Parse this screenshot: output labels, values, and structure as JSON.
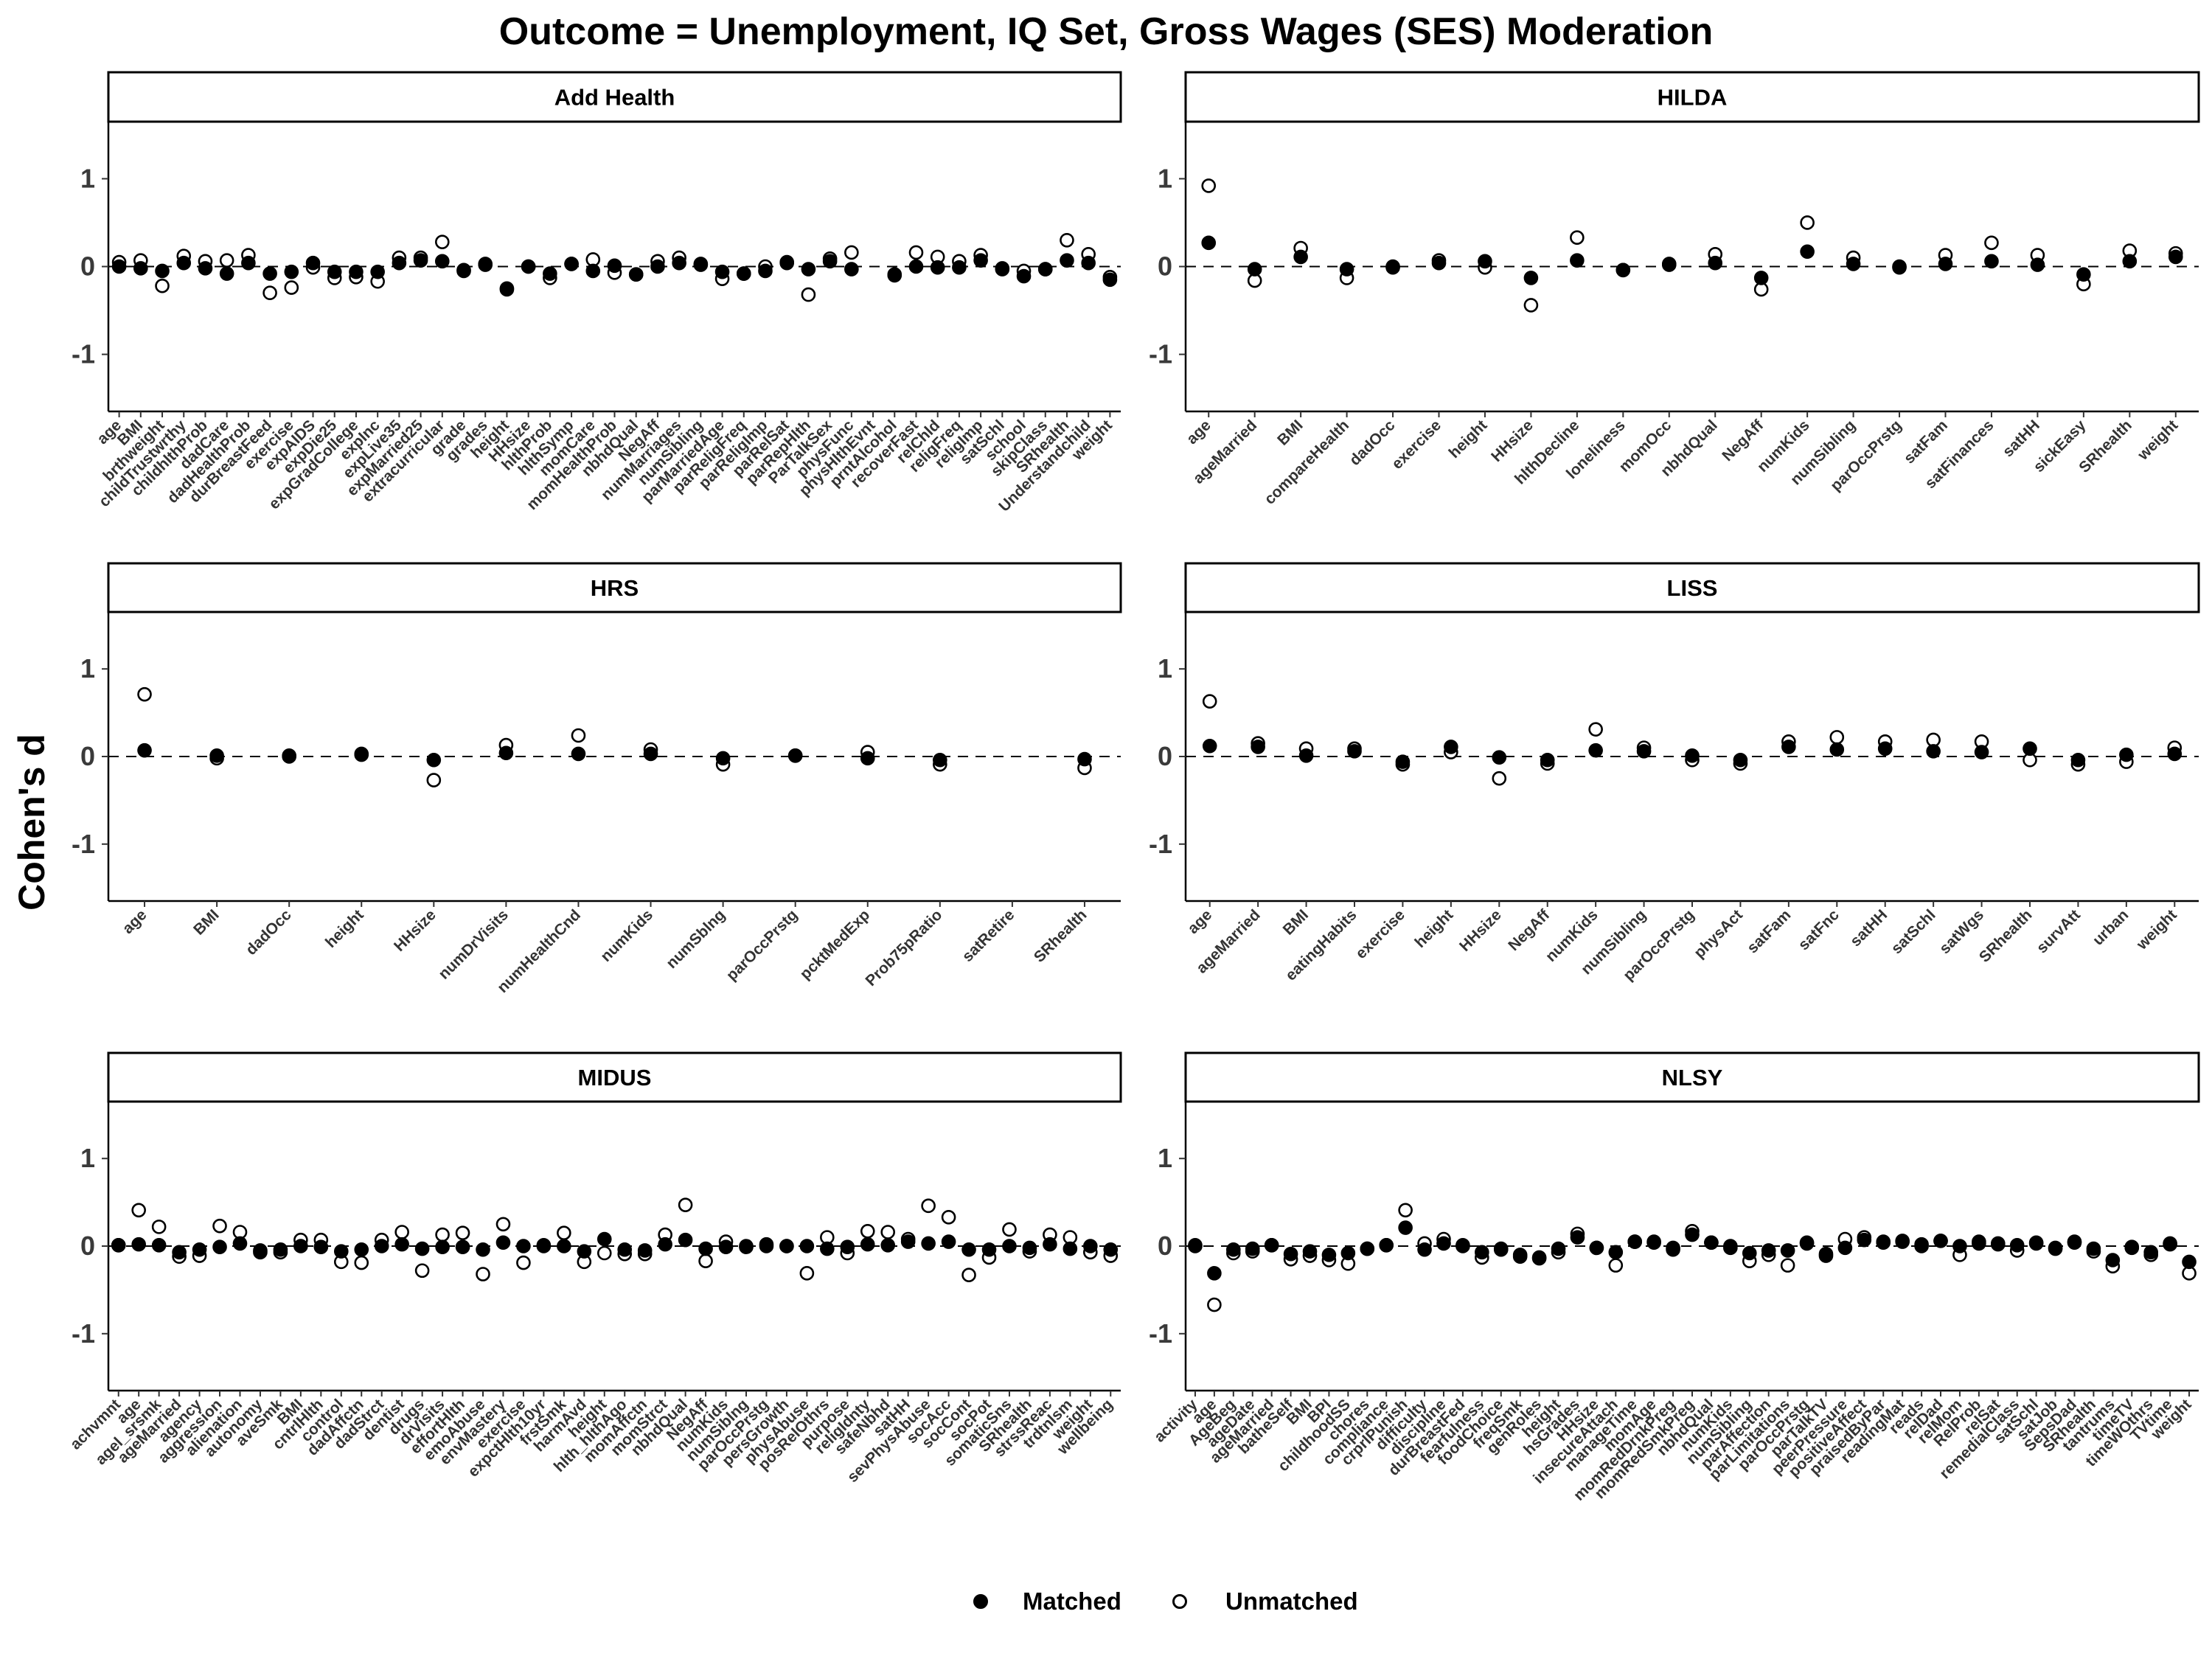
{
  "chart_data": {
    "type": "scatter",
    "title": "Outcome = Unemployment, IQ Set, Gross Wages (SES) Moderation",
    "ylabel": "Cohen's d",
    "ylim": [
      -1.65,
      1.65
    ],
    "yticks": [
      -1,
      0,
      1
    ],
    "reference_line": 0,
    "grid": false,
    "legend": {
      "position": "bottom",
      "entries": [
        {
          "name": "Matched",
          "marker": "filled-circle"
        },
        {
          "name": "Unmatched",
          "marker": "open-circle"
        }
      ]
    },
    "colors": {
      "matched": "#000000",
      "unmatched": "#ffffff",
      "stroke": "#000000"
    },
    "panels": [
      {
        "name": "Add Health",
        "categories": [
          "age",
          "BMI",
          "brthweight",
          "childTrustwrthy",
          "childhlthProb",
          "dadCare",
          "dadHealthProb",
          "durBreastFeed",
          "exercise",
          "expAIDS",
          "expDie25",
          "expGradCollege",
          "expInc",
          "expLive35",
          "expMarried25",
          "extracurricular",
          "grade",
          "grades",
          "height",
          "HHsize",
          "hlthProb",
          "hlthSymp",
          "momCare",
          "momHealthProb",
          "nbhdQual",
          "NegAff",
          "numMarriages",
          "numSibling",
          "parMarriedAge",
          "parReligFreq",
          "parReligImp",
          "parRelSat",
          "parRepHlth",
          "ParTalkSex",
          "physFunc",
          "physHlthEvnt",
          "prntAlcohol",
          "recoverFast",
          "relChld",
          "religFreq",
          "religImp",
          "satSchl",
          "school",
          "skipClass",
          "SRhealth",
          "Understandchild",
          "weight"
        ],
        "matched": [
          0.0,
          -0.02,
          -0.05,
          0.04,
          -0.02,
          -0.08,
          0.04,
          -0.08,
          -0.06,
          0.04,
          -0.06,
          -0.06,
          -0.06,
          0.04,
          0.07,
          0.06,
          -0.04,
          0.03,
          -0.25,
          0.0,
          -0.08,
          0.03,
          -0.05,
          0.01,
          -0.09,
          0.0,
          0.04,
          0.02,
          -0.06,
          -0.08,
          -0.05,
          0.05,
          -0.03,
          0.06,
          -0.03,
          null,
          -0.09,
          0.0,
          -0.01,
          -0.01,
          0.07,
          -0.03,
          -0.11,
          -0.03,
          0.07,
          0.04,
          -0.15
        ],
        "unmatched": [
          0.05,
          0.07,
          -0.22,
          0.12,
          0.06,
          0.07,
          0.13,
          -0.3,
          -0.24,
          -0.01,
          -0.13,
          -0.12,
          -0.17,
          0.1,
          0.1,
          0.28,
          -0.05,
          0.02,
          -0.26,
          0.0,
          -0.13,
          0.03,
          0.08,
          -0.07,
          -0.09,
          0.06,
          0.1,
          0.03,
          -0.14,
          -0.08,
          0.0,
          0.04,
          -0.32,
          0.09,
          0.16,
          null,
          -0.1,
          0.16,
          0.11,
          0.06,
          0.13,
          -0.02,
          -0.05,
          -0.03,
          0.3,
          0.14,
          -0.12
        ]
      },
      {
        "name": "HILDA",
        "categories": [
          "age",
          "ageMarried",
          "BMI",
          "compareHealth",
          "dadOcc",
          "exercise",
          "height",
          "HHsize",
          "hlthDecline",
          "loneliness",
          "momOcc",
          "nbhdQual",
          "NegAff",
          "numKids",
          "numSibling",
          "parOccPrstg",
          "satFam",
          "satFinances",
          "satHH",
          "sickEasy",
          "SRhealth",
          "weight"
        ],
        "matched": [
          0.27,
          -0.03,
          0.11,
          -0.03,
          -0.01,
          0.04,
          0.06,
          -0.13,
          0.07,
          -0.04,
          0.03,
          0.04,
          -0.13,
          0.17,
          0.03,
          0.0,
          0.03,
          0.06,
          0.02,
          -0.09,
          0.06,
          0.11
        ],
        "unmatched": [
          0.92,
          -0.16,
          0.21,
          -0.13,
          0.0,
          0.07,
          -0.01,
          -0.44,
          0.33,
          -0.04,
          0.02,
          0.14,
          -0.26,
          0.5,
          0.1,
          -0.01,
          0.13,
          0.27,
          0.13,
          -0.2,
          0.18,
          0.15
        ]
      },
      {
        "name": "HRS",
        "categories": [
          "age",
          "BMI",
          "dadOcc",
          "height",
          "HHsize",
          "numDrVisits",
          "numHealthCnd",
          "numKids",
          "numSblng",
          "parOccPrstg",
          "pcktMedExp",
          "Prob75pRatio",
          "satRetire",
          "SRhealth"
        ],
        "matched": [
          0.07,
          0.01,
          0.01,
          0.03,
          -0.04,
          0.04,
          0.03,
          0.03,
          -0.02,
          0.01,
          -0.02,
          -0.04,
          null,
          -0.03
        ],
        "unmatched": [
          0.71,
          -0.02,
          0.0,
          0.02,
          -0.27,
          0.13,
          0.24,
          0.08,
          -0.09,
          0.01,
          0.05,
          -0.09,
          null,
          -0.13
        ]
      },
      {
        "name": "LISS",
        "categories": [
          "age",
          "ageMarried",
          "BMI",
          "eatingHabits",
          "exercise",
          "height",
          "HHsize",
          "NegAff",
          "numKids",
          "numSibling",
          "parOccPrstg",
          "physAct",
          "satFam",
          "satFnc",
          "satHH",
          "satSchl",
          "satWgs",
          "SRhealth",
          "survAtt",
          "urban",
          "weight"
        ],
        "matched": [
          0.12,
          0.11,
          0.01,
          0.06,
          -0.06,
          0.11,
          -0.01,
          -0.04,
          0.07,
          0.06,
          0.01,
          -0.04,
          0.11,
          0.08,
          0.09,
          0.06,
          0.05,
          0.09,
          -0.04,
          0.02,
          0.03
        ],
        "unmatched": [
          0.63,
          0.15,
          0.09,
          0.09,
          -0.09,
          0.05,
          -0.25,
          -0.08,
          0.31,
          0.1,
          -0.04,
          -0.08,
          0.17,
          0.22,
          0.17,
          0.19,
          0.17,
          -0.04,
          -0.09,
          -0.06,
          0.1
        ]
      },
      {
        "name": "MIDUS",
        "categories": [
          "achvmnt",
          "age",
          "agel_srsmk",
          "ageMarried",
          "agency",
          "aggression",
          "alienation",
          "autonomy",
          "aveSmk",
          "BMI",
          "cntrlHlth",
          "control",
          "dadAffctn",
          "dadStrct",
          "dentist",
          "drugs",
          "drVisits",
          "effortHlth",
          "emoAbuse",
          "envMastery",
          "exercise",
          "expctHlth10yr",
          "frstSmk",
          "harmAvd",
          "height",
          "hlth_hlthAgo",
          "momAffctn",
          "momStrct",
          "nbhdQual",
          "NegAff",
          "numKids",
          "numSiblng",
          "parOccPrstg",
          "persGrowth",
          "physAbuse",
          "posRelOthrs",
          "purpose",
          "religIdnty",
          "safeNbhd",
          "satHH",
          "sevPhysAbuse",
          "socAcc",
          "socCont",
          "socPot",
          "somaticSns",
          "SRhealth",
          "strssReac",
          "trdtnlsm",
          "weight",
          "wellbeing"
        ],
        "matched": [
          0.01,
          0.02,
          0.01,
          -0.07,
          -0.04,
          -0.01,
          0.03,
          -0.05,
          -0.04,
          0.0,
          -0.01,
          -0.06,
          -0.04,
          0.0,
          0.02,
          -0.03,
          -0.01,
          -0.01,
          -0.04,
          0.04,
          0.0,
          0.0,
          0.0,
          -0.06,
          0.08,
          -0.04,
          -0.05,
          0.02,
          0.07,
          -0.03,
          -0.01,
          -0.01,
          0.0,
          0.0,
          0.0,
          -0.03,
          -0.01,
          0.02,
          0.01,
          0.05,
          0.03,
          0.05,
          -0.04,
          -0.04,
          0.0,
          -0.02,
          0.02,
          -0.03,
          0.0,
          -0.04
        ],
        "unmatched": [
          0.01,
          0.41,
          0.22,
          -0.12,
          -0.11,
          0.23,
          0.16,
          -0.07,
          -0.07,
          0.07,
          0.07,
          -0.18,
          -0.19,
          0.07,
          0.16,
          -0.28,
          0.13,
          0.15,
          -0.32,
          0.25,
          -0.19,
          0.01,
          0.15,
          -0.18,
          -0.08,
          -0.09,
          -0.09,
          0.13,
          0.47,
          -0.17,
          0.05,
          0.0,
          0.02,
          0.0,
          -0.31,
          0.1,
          -0.08,
          0.17,
          0.16,
          0.08,
          0.46,
          0.33,
          -0.33,
          -0.13,
          0.19,
          -0.06,
          0.13,
          0.1,
          -0.07,
          -0.11
        ]
      },
      {
        "name": "NLSY",
        "categories": [
          "activity",
          "age",
          "AgeBeg",
          "ageDate",
          "ageMarried",
          "batheSelf",
          "BMI",
          "BPI",
          "childhoodSS",
          "chores",
          "compliance",
          "crprlPunish",
          "difficulty",
          "discipline",
          "durBreastFed",
          "fearfulness",
          "foodChoice",
          "freqSmk",
          "genRoles",
          "height",
          "hsGrades",
          "HHsize",
          "insecureAttach",
          "manageTime",
          "momAge",
          "momRedDrnkPreg",
          "momRedSmkPreg",
          "nbhdQual",
          "numKids",
          "numSibling",
          "parAffection",
          "parLimitations",
          "parOccPrstg",
          "parTalkTV",
          "peerPressure",
          "positiveAffect",
          "praisedByPar",
          "readingMat",
          "reads",
          "relDad",
          "relMom",
          "RelProb",
          "relSat",
          "remedialClass",
          "satSchl",
          "satJob",
          "SepsDad",
          "SRhealth",
          "tantrums",
          "timeTV",
          "timeWOthrs",
          "TVtime",
          "weight"
        ],
        "matched": [
          0.0,
          -0.31,
          -0.04,
          -0.03,
          0.01,
          -0.09,
          -0.06,
          -0.1,
          -0.08,
          -0.03,
          0.01,
          0.21,
          -0.04,
          0.03,
          0.0,
          -0.07,
          -0.04,
          -0.12,
          -0.14,
          -0.03,
          0.1,
          -0.02,
          -0.07,
          0.05,
          0.04,
          -0.02,
          0.13,
          0.04,
          0.0,
          -0.08,
          -0.05,
          -0.05,
          0.03,
          -0.11,
          -0.02,
          0.07,
          0.05,
          0.05,
          0.02,
          0.06,
          0.0,
          0.05,
          0.03,
          0.01,
          0.04,
          -0.02,
          0.04,
          -0.03,
          -0.16,
          -0.02,
          -0.07,
          0.02,
          -0.18
        ],
        "unmatched": [
          0.01,
          -0.67,
          -0.08,
          -0.06,
          0.01,
          -0.15,
          -0.11,
          -0.16,
          -0.2,
          -0.03,
          0.01,
          0.41,
          0.03,
          0.08,
          0.01,
          -0.13,
          -0.03,
          -0.1,
          -0.13,
          -0.07,
          0.14,
          -0.02,
          -0.22,
          0.05,
          0.05,
          -0.04,
          0.17,
          0.04,
          -0.02,
          -0.17,
          -0.1,
          -0.22,
          0.04,
          -0.09,
          0.08,
          0.1,
          0.04,
          0.06,
          0.0,
          0.06,
          -0.1,
          0.03,
          0.02,
          -0.05,
          0.03,
          -0.03,
          0.05,
          -0.06,
          -0.23,
          -0.01,
          -0.1,
          0.03,
          -0.31
        ]
      }
    ]
  }
}
